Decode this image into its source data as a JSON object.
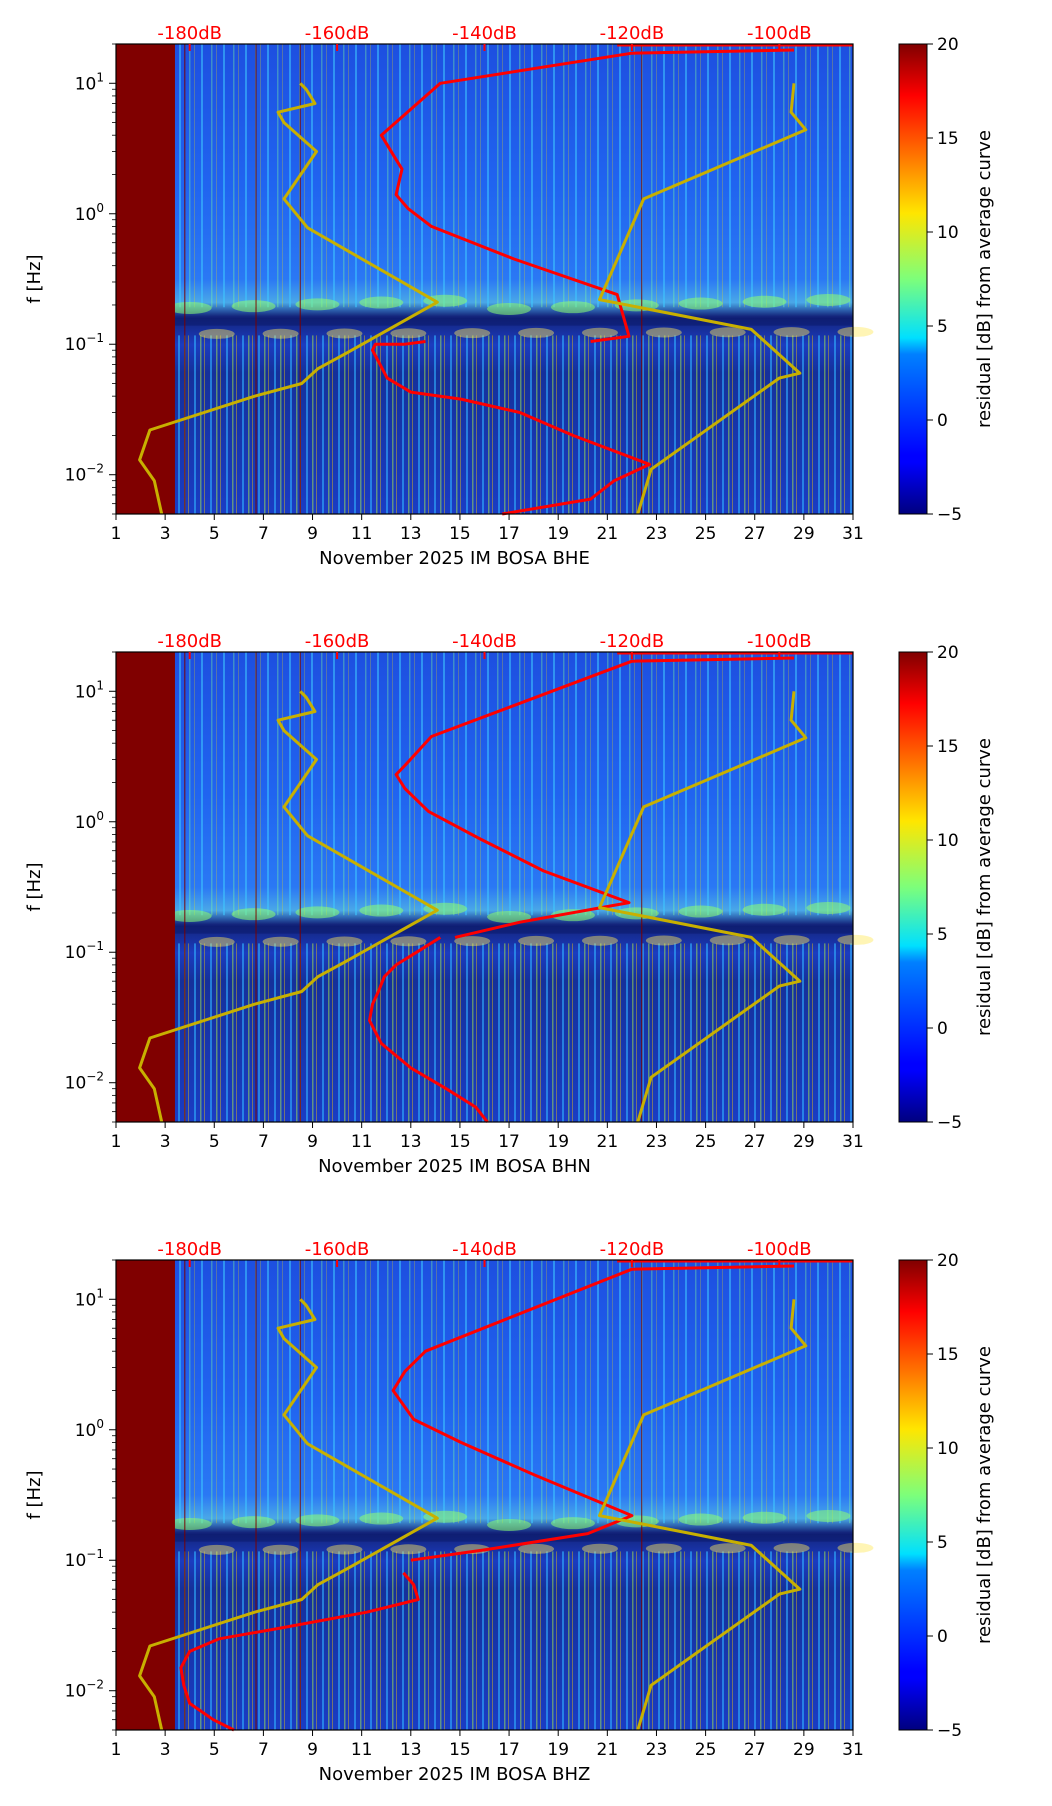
{
  "chart_data": [
    {
      "type": "heatmap",
      "title": "",
      "xlabel": "November 2025 IM BOSA  BHE",
      "ylabel": "f [Hz]",
      "x_ticks": [
        "1",
        "3",
        "5",
        "7",
        "9",
        "11",
        "13",
        "15",
        "17",
        "19",
        "21",
        "23",
        "25",
        "27",
        "29",
        "31"
      ],
      "xlim": [
        1,
        31
      ],
      "ylim": [
        0.005,
        20
      ],
      "y_scale": "log",
      "y_ticks": [
        "10^1",
        "10^0",
        "10^-1",
        "10^-2"
      ],
      "db_scale_labels": [
        "-180dB",
        "-160dB",
        "-140dB",
        "-120dB",
        "-100dB"
      ],
      "colorbar": {
        "label": "residual [dB] from average curve",
        "ticks": [
          "20",
          "15",
          "10",
          "5",
          "0",
          "−5"
        ],
        "range": [
          -5,
          20
        ]
      },
      "data_gap": {
        "from_day": 1,
        "to_day": 3.4
      },
      "series": [
        {
          "name": "PSD in dB (red curve)",
          "color": "#ff0000",
          "dB": [
            -137.6,
            -125.6,
            -122.4,
            -117.6,
            -128.0,
            -135.2,
            -143.2,
            -150.0,
            -153.2,
            -155.2,
            -154.8,
            -153.6,
            -150.8,
            -148.0
          ],
          "freq": [
            0.005,
            0.0065,
            0.009,
            0.012,
            0.02,
            0.03,
            0.038,
            0.043,
            0.055,
            0.09,
            0.1,
            0.1,
            0.1,
            0.105
          ]
        },
        {
          "name": "PSD in dB (red curve, upper)",
          "color": "#ff0000",
          "dB": [
            -125.6,
            -120.4,
            -122.0,
            -136.0,
            -147.2,
            -150.4,
            -152.0,
            -151.2,
            -152.0,
            -154.0,
            -146.0,
            -120.0,
            -98.0
          ],
          "freq": [
            0.105,
            0.115,
            0.24,
            0.45,
            0.8,
            1.1,
            1.4,
            2.2,
            2.6,
            4.0,
            10.0,
            17.0,
            18.0
          ]
        },
        {
          "name": "high noise model",
          "color": "#c8b000",
          "dB": [
            -119.2,
            -117.4,
            -100.0,
            -97.2,
            -103.8,
            -124.4,
            -118.4,
            -96.4,
            -98.4,
            -98.0
          ],
          "freq": [
            0.005,
            0.011,
            0.055,
            0.06,
            0.13,
            0.22,
            1.3,
            4.4,
            6.0,
            10.0
          ]
        },
        {
          "name": "low noise model",
          "color": "#c8b000",
          "dB": [
            -183.8,
            -184.8,
            -186.8,
            -185.4,
            -171.2,
            -164.8,
            -162.6,
            -158.8,
            -146.4,
            -164.0,
            -167.2,
            -162.8,
            -167.2,
            -168.0,
            -163.0,
            -164.2,
            -165.0
          ],
          "freq": [
            0.005,
            0.009,
            0.013,
            0.022,
            0.04,
            0.05,
            0.065,
            0.085,
            0.21,
            0.78,
            1.3,
            3.0,
            5.0,
            6.0,
            7.0,
            9.0,
            10.0
          ]
        }
      ]
    },
    {
      "type": "heatmap",
      "title": "",
      "xlabel": "November 2025 IM BOSA  BHN",
      "ylabel": "f [Hz]",
      "x_ticks": [
        "1",
        "3",
        "5",
        "7",
        "9",
        "11",
        "13",
        "15",
        "17",
        "19",
        "21",
        "23",
        "25",
        "27",
        "29",
        "31"
      ],
      "xlim": [
        1,
        31
      ],
      "ylim": [
        0.005,
        20
      ],
      "y_scale": "log",
      "y_ticks": [
        "10^1",
        "10^0",
        "10^-1",
        "10^-2"
      ],
      "db_scale_labels": [
        "-180dB",
        "-160dB",
        "-140dB",
        "-120dB",
        "-100dB"
      ],
      "colorbar": {
        "label": "residual [dB] from average curve",
        "ticks": [
          "20",
          "15",
          "10",
          "5",
          "0",
          "−5"
        ],
        "range": [
          -5,
          20
        ]
      },
      "data_gap": {
        "from_day": 1,
        "to_day": 3.4
      },
      "series": [
        {
          "name": "PSD in dB (red curve)",
          "color": "#ff0000",
          "dB": [
            -139.6,
            -141.2,
            -145.2,
            -150.0,
            -154.0,
            -155.6,
            -155.2,
            -154.4,
            -153.6,
            -152.0,
            -149.2,
            -146.0
          ],
          "freq": [
            0.005,
            0.0065,
            0.009,
            0.013,
            0.02,
            0.03,
            0.04,
            0.05,
            0.065,
            0.08,
            0.1,
            0.13
          ]
        },
        {
          "name": "PSD in dB (red curve, upper)",
          "color": "#ff0000",
          "dB": [
            -144.0,
            -135.2,
            -120.4,
            -132.0,
            -140.8,
            -147.6,
            -150.8,
            -152.0,
            -150.8,
            -147.2,
            -120.0,
            -98.0
          ],
          "freq": [
            0.13,
            0.17,
            0.24,
            0.42,
            0.75,
            1.2,
            1.8,
            2.3,
            2.7,
            4.5,
            17.0,
            18.0
          ]
        },
        {
          "name": "high noise model",
          "color": "#c8b000",
          "dB": [
            -119.2,
            -117.4,
            -100.0,
            -97.2,
            -103.8,
            -124.4,
            -118.4,
            -96.4,
            -98.4,
            -98.0
          ],
          "freq": [
            0.005,
            0.011,
            0.055,
            0.06,
            0.13,
            0.22,
            1.3,
            4.4,
            6.0,
            10.0
          ]
        },
        {
          "name": "low noise model",
          "color": "#c8b000",
          "dB": [
            -183.8,
            -184.8,
            -186.8,
            -185.4,
            -171.2,
            -164.8,
            -162.6,
            -158.8,
            -146.4,
            -164.0,
            -167.2,
            -162.8,
            -167.2,
            -168.0,
            -163.0,
            -164.2,
            -165.0
          ],
          "freq": [
            0.005,
            0.009,
            0.013,
            0.022,
            0.04,
            0.05,
            0.065,
            0.085,
            0.21,
            0.78,
            1.3,
            3.0,
            5.0,
            6.0,
            7.0,
            9.0,
            10.0
          ]
        }
      ]
    },
    {
      "type": "heatmap",
      "title": "",
      "xlabel": "November 2025 IM BOSA  BHZ",
      "ylabel": "f [Hz]",
      "x_ticks": [
        "1",
        "3",
        "5",
        "7",
        "9",
        "11",
        "13",
        "15",
        "17",
        "19",
        "21",
        "23",
        "25",
        "27",
        "29",
        "31"
      ],
      "xlim": [
        1,
        31
      ],
      "ylim": [
        0.005,
        20
      ],
      "y_scale": "log",
      "y_ticks": [
        "10^1",
        "10^0",
        "10^-1",
        "10^-2"
      ],
      "db_scale_labels": [
        "-180dB",
        "-160dB",
        "-140dB",
        "-120dB",
        "-100dB"
      ],
      "colorbar": {
        "label": "residual [dB] from average curve",
        "ticks": [
          "20",
          "15",
          "10",
          "5",
          "0",
          "−5"
        ],
        "range": [
          -5,
          20
        ]
      },
      "data_gap": {
        "from_day": 1,
        "to_day": 3.4
      },
      "series": [
        {
          "name": "PSD in dB (red curve)",
          "color": "#ff0000",
          "dB": [
            -174.0,
            -176.8,
            -180.0,
            -180.8,
            -181.2,
            -180.0,
            -176.0,
            -168.0,
            -156.0,
            -149.0,
            -149.6,
            -151.0
          ],
          "freq": [
            0.005,
            0.006,
            0.008,
            0.011,
            0.015,
            0.02,
            0.025,
            0.03,
            0.04,
            0.05,
            0.065,
            0.08
          ]
        },
        {
          "name": "PSD in dB (red curve, upper)",
          "color": "#ff0000",
          "dB": [
            -150.0,
            -140.0,
            -126.0,
            -120.0,
            -133.2,
            -143.2,
            -149.6,
            -152.4,
            -150.8,
            -148.0,
            -120.0,
            -98.0
          ],
          "freq": [
            0.1,
            0.12,
            0.16,
            0.22,
            0.45,
            0.8,
            1.2,
            2.0,
            2.8,
            4.0,
            17.0,
            18.0
          ]
        },
        {
          "name": "high noise model",
          "color": "#c8b000",
          "dB": [
            -119.2,
            -117.4,
            -100.0,
            -97.2,
            -103.8,
            -124.4,
            -118.4,
            -96.4,
            -98.4,
            -98.0
          ],
          "freq": [
            0.005,
            0.011,
            0.055,
            0.06,
            0.13,
            0.22,
            1.3,
            4.4,
            6.0,
            10.0
          ]
        },
        {
          "name": "low noise model",
          "color": "#c8b000",
          "dB": [
            -183.8,
            -184.8,
            -186.8,
            -185.4,
            -171.2,
            -164.8,
            -162.6,
            -158.8,
            -146.4,
            -164.0,
            -167.2,
            -162.8,
            -167.2,
            -168.0,
            -163.0,
            -164.2,
            -165.0
          ],
          "freq": [
            0.005,
            0.009,
            0.013,
            0.022,
            0.04,
            0.05,
            0.065,
            0.085,
            0.21,
            0.78,
            1.3,
            3.0,
            5.0,
            6.0,
            7.0,
            9.0,
            10.0
          ]
        }
      ]
    }
  ]
}
